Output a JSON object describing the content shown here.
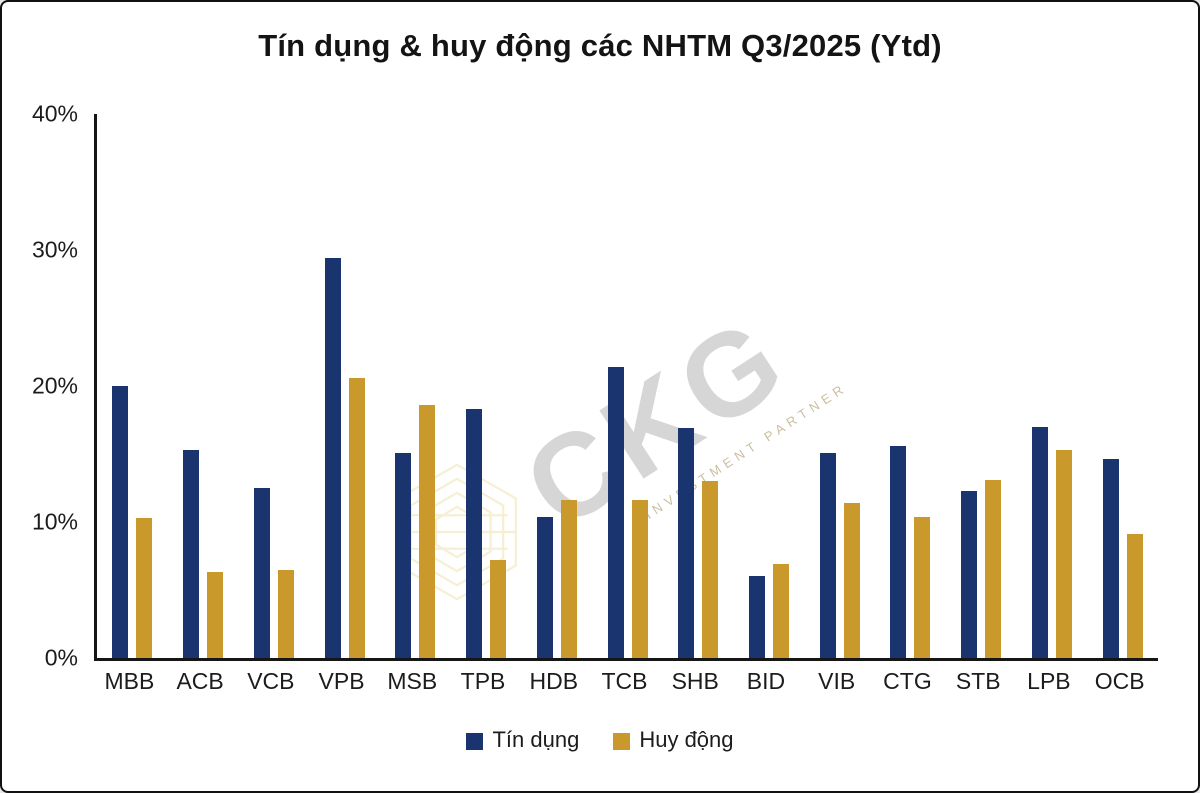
{
  "window": {
    "background": "#ffffff",
    "border_color": "#111111"
  },
  "chart_data": {
    "type": "bar",
    "title": "Tín dụng & huy động các NHTM Q3/2025 (Ytd)",
    "categories": [
      "MBB",
      "ACB",
      "VCB",
      "VPB",
      "MSB",
      "TPB",
      "HDB",
      "TCB",
      "SHB",
      "BID",
      "VIB",
      "CTG",
      "STB",
      "LPB",
      "OCB"
    ],
    "series": [
      {
        "name": "Tín dụng",
        "color": "#1A3470",
        "values": [
          20.0,
          15.3,
          12.5,
          29.4,
          15.1,
          18.3,
          10.4,
          21.4,
          16.9,
          6.0,
          15.1,
          15.6,
          12.3,
          17.0,
          14.6
        ]
      },
      {
        "name": "Huy động",
        "color": "#C9992B",
        "values": [
          10.3,
          6.3,
          6.5,
          20.6,
          18.6,
          7.2,
          11.6,
          11.6,
          13.0,
          6.9,
          11.4,
          10.4,
          13.1,
          15.3,
          9.1
        ]
      }
    ],
    "ylim": [
      0,
      40
    ],
    "ytick_values": [
      0,
      10,
      20,
      30,
      40
    ],
    "ytick_labels": [
      "0%",
      "10%",
      "20%",
      "30%",
      "40%"
    ],
    "grid": false,
    "legend_position": "bottom"
  },
  "watermark": {
    "text": "CKG",
    "tagline": "INVESTMENT PARTNER",
    "text_color": "#9e9e9e",
    "logo_color": "#d9b93a"
  }
}
